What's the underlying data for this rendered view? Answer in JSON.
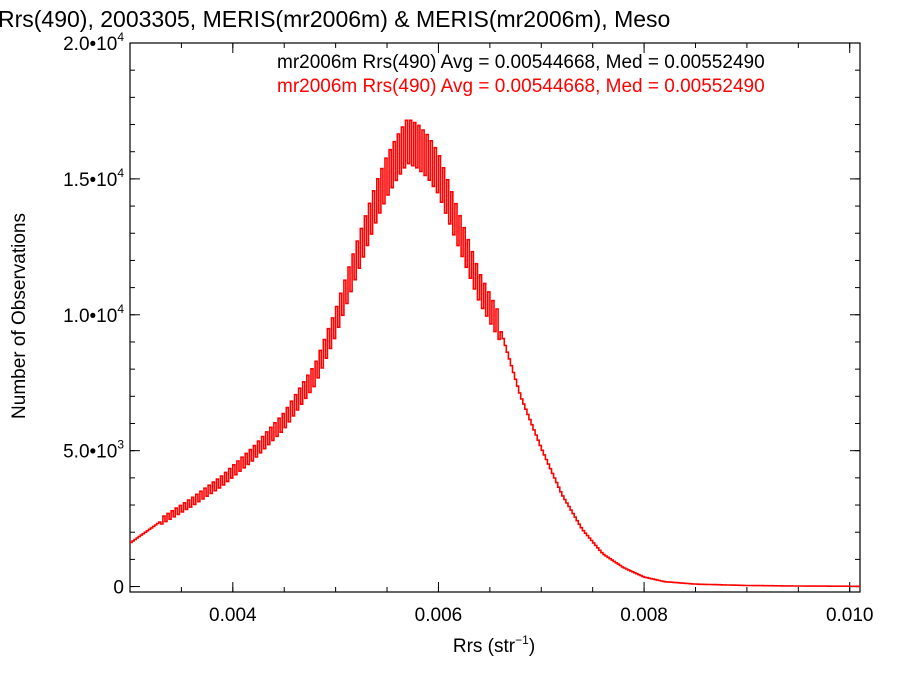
{
  "chart_data": {
    "type": "histogram-step",
    "title": "Rrs(490), 2003305, MERIS(mr2006m) & MERIS(mr2006m), Meso",
    "xlabel_base": "Rrs (str",
    "xlabel_sup": "−1",
    "xlabel_close": ")",
    "ylabel": "Number of Observations",
    "xlim": [
      0.003,
      0.0101
    ],
    "ylim": [
      -200,
      20000
    ],
    "x_ticks": [
      {
        "value": 0.004,
        "label": "0.004"
      },
      {
        "value": 0.006,
        "label": "0.006"
      },
      {
        "value": 0.008,
        "label": "0.008"
      },
      {
        "value": 0.01,
        "label": "0.010"
      }
    ],
    "x_minor_step": 0.0005,
    "y_ticks": [
      {
        "value": 0,
        "label": "0",
        "exp": ""
      },
      {
        "value": 5000,
        "label": "5.0•10",
        "exp": "3"
      },
      {
        "value": 10000,
        "label": "1.0•10",
        "exp": "4"
      },
      {
        "value": 15000,
        "label": "1.5•10",
        "exp": "4"
      },
      {
        "value": 20000,
        "label": "2.0•10",
        "exp": "4"
      }
    ],
    "y_minor_step": 1000,
    "legend": [
      {
        "text": "mr2006m Rrs(490) Avg = 0.00544668, Med = 0.00552490",
        "color": "#000000"
      },
      {
        "text": "mr2006m Rrs(490) Avg = 0.00544668, Med = 0.00552490",
        "color": "#ff0000"
      }
    ],
    "legend_position": "top-right",
    "series": [
      {
        "color": "#ff0000",
        "x": [
          0.003,
          0.0033,
          0.0036,
          0.0039,
          0.0042,
          0.0045,
          0.0048,
          0.005,
          0.0052,
          0.0054,
          0.0055,
          0.0056,
          0.0057,
          0.0058,
          0.0059,
          0.006,
          0.0062,
          0.0064,
          0.0066,
          0.0068,
          0.007,
          0.0072,
          0.0074,
          0.0076,
          0.0078,
          0.008,
          0.0082,
          0.0085,
          0.009,
          0.0095,
          0.0101
        ],
        "y": [
          1600,
          2400,
          3100,
          3900,
          4900,
          6100,
          7800,
          9700,
          12000,
          14200,
          15100,
          15800,
          16400,
          16200,
          15800,
          15200,
          13100,
          11000,
          9500,
          7000,
          5100,
          3400,
          2100,
          1200,
          700,
          350,
          180,
          90,
          40,
          20,
          10
        ],
        "comb_amplitude_fraction": 0.1,
        "comb_region": [
          0.0033,
          0.0066
        ]
      }
    ]
  }
}
